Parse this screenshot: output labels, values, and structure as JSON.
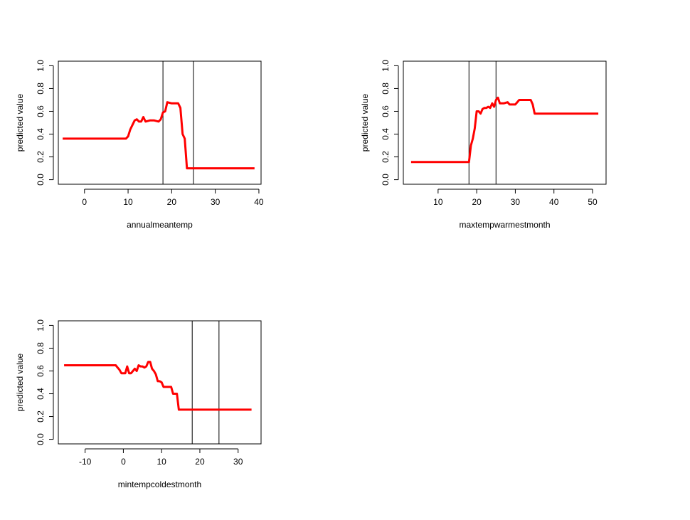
{
  "chart_data": [
    {
      "type": "line",
      "xlabel": "annualmeantemp",
      "ylabel": "predicted value",
      "xlim": [
        -6,
        40.5
      ],
      "ylim": [
        -0.04,
        1.04
      ],
      "xticks": [
        "0",
        "10",
        "20",
        "30",
        "40"
      ],
      "xtick_values": [
        0,
        10,
        20,
        30,
        40
      ],
      "yticks": [
        "0.0",
        "0.2",
        "0.4",
        "0.6",
        "0.8",
        "1.0"
      ],
      "ytick_values": [
        0,
        0.2,
        0.4,
        0.6,
        0.8,
        1.0
      ],
      "vlines": [
        18,
        25
      ],
      "series_color": "#ff0000",
      "x": [
        -5,
        9.5,
        10,
        10.5,
        11,
        11.5,
        12,
        12.5,
        13,
        13.5,
        14,
        15,
        16,
        17,
        17.5,
        18,
        18.5,
        19,
        20,
        21,
        21.5,
        22,
        22.5,
        23,
        23.5,
        24,
        39
      ],
      "y": [
        0.36,
        0.36,
        0.38,
        0.44,
        0.48,
        0.52,
        0.53,
        0.51,
        0.51,
        0.55,
        0.51,
        0.52,
        0.52,
        0.51,
        0.53,
        0.59,
        0.6,
        0.68,
        0.67,
        0.67,
        0.67,
        0.63,
        0.4,
        0.36,
        0.1,
        0.1,
        0.1
      ]
    },
    {
      "type": "line",
      "xlabel": "maxtempwarmestmonth",
      "ylabel": "predicted value",
      "xlim": [
        1,
        53.5
      ],
      "ylim": [
        -0.04,
        1.04
      ],
      "xticks": [
        "10",
        "20",
        "30",
        "40",
        "50"
      ],
      "xtick_values": [
        10,
        20,
        30,
        40,
        50
      ],
      "yticks": [
        "0.0",
        "0.2",
        "0.4",
        "0.6",
        "0.8",
        "1.0"
      ],
      "ytick_values": [
        0,
        0.2,
        0.4,
        0.6,
        0.8,
        1.0
      ],
      "vlines": [
        18,
        25
      ],
      "series_color": "#ff0000",
      "x": [
        3,
        18,
        18.5,
        19,
        19.5,
        20,
        20.5,
        21,
        21.5,
        22,
        22.5,
        23,
        23.5,
        24,
        24.5,
        25,
        25.5,
        26,
        27,
        28,
        28.5,
        29,
        30,
        31,
        32,
        33,
        34,
        34.5,
        35,
        51.5
      ],
      "y": [
        0.155,
        0.155,
        0.3,
        0.36,
        0.45,
        0.6,
        0.6,
        0.58,
        0.62,
        0.63,
        0.63,
        0.64,
        0.63,
        0.67,
        0.64,
        0.7,
        0.72,
        0.67,
        0.67,
        0.68,
        0.66,
        0.66,
        0.66,
        0.7,
        0.7,
        0.7,
        0.7,
        0.66,
        0.58,
        0.58
      ]
    },
    {
      "type": "line",
      "xlabel": "mintempcoldestmonth",
      "ylabel": "predicted value",
      "xlim": [
        -17,
        36
      ],
      "ylim": [
        -0.04,
        1.04
      ],
      "xticks": [
        "-10",
        "0",
        "10",
        "20",
        "30"
      ],
      "xtick_values": [
        -10,
        0,
        10,
        20,
        30
      ],
      "yticks": [
        "0.0",
        "0.2",
        "0.4",
        "0.6",
        "0.8",
        "1.0"
      ],
      "ytick_values": [
        0,
        0.2,
        0.4,
        0.6,
        0.8,
        1.0
      ],
      "vlines": [
        18,
        25
      ],
      "series_color": "#ff0000",
      "x": [
        -15.5,
        -2,
        -1.5,
        -1,
        -0.5,
        0,
        0.5,
        1,
        1.5,
        2,
        2.5,
        3,
        3.5,
        4,
        4.5,
        5,
        5.5,
        6,
        6.5,
        7,
        7.5,
        8,
        8.5,
        9,
        9.5,
        10,
        10.5,
        11,
        11.5,
        12,
        12.5,
        13,
        13.5,
        14,
        14.5,
        33.5
      ],
      "y": [
        0.65,
        0.65,
        0.63,
        0.61,
        0.58,
        0.58,
        0.58,
        0.64,
        0.58,
        0.58,
        0.6,
        0.62,
        0.6,
        0.65,
        0.64,
        0.64,
        0.63,
        0.64,
        0.68,
        0.68,
        0.62,
        0.6,
        0.57,
        0.51,
        0.51,
        0.5,
        0.46,
        0.46,
        0.46,
        0.46,
        0.46,
        0.4,
        0.4,
        0.4,
        0.26,
        0.26
      ]
    }
  ]
}
